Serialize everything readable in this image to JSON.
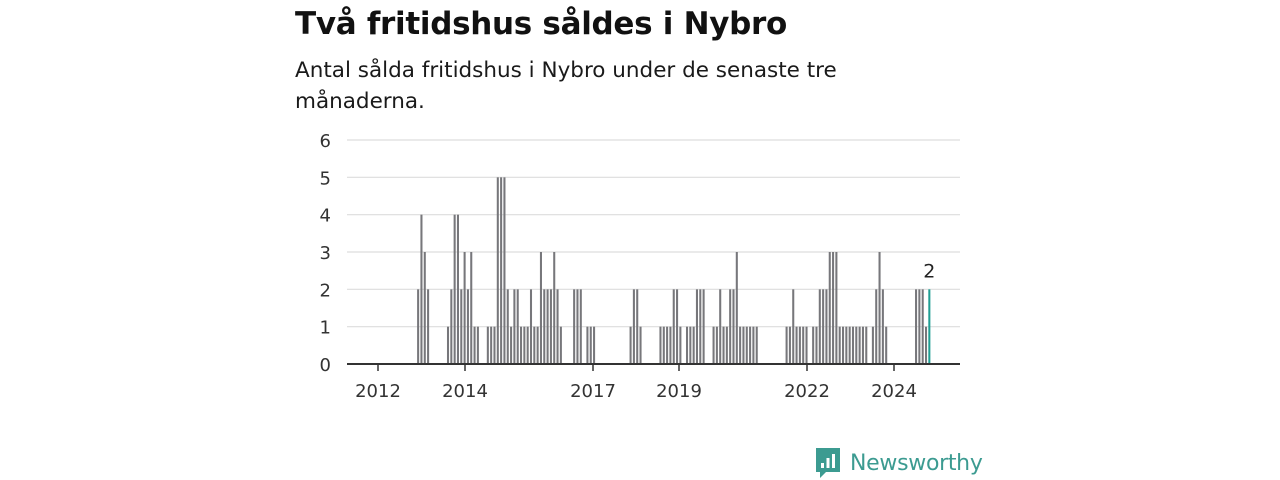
{
  "title": "Två fritidshus såldes i Nybro",
  "subtitle": "Antal sålda fritidshus i Nybro under de senaste tre månaderna.",
  "brand": "Newsworthy",
  "colors": {
    "bar": "#77777b",
    "highlight": "#1f9e93",
    "grid": "#dddddd",
    "axis": "#333333",
    "brand": "#3c9b91"
  },
  "chart_data": {
    "type": "bar",
    "ylim": [
      0,
      6
    ],
    "yticks": [
      0,
      1,
      2,
      3,
      4,
      5,
      6
    ],
    "xticks": [
      "2012",
      "2014",
      "2017",
      "2019",
      "2022",
      "2024"
    ],
    "grid": true,
    "last_value_label": "2",
    "series": [
      {
        "values": [
          0,
          0,
          0,
          0,
          0,
          0,
          0,
          0,
          0,
          0,
          0,
          0,
          0,
          0,
          2,
          4,
          3,
          2,
          0,
          0,
          0,
          0,
          0,
          1,
          2,
          4,
          4,
          2,
          3,
          2,
          3,
          1,
          1,
          0,
          0,
          1,
          1,
          1,
          5,
          5,
          5,
          2,
          1,
          2,
          2,
          1,
          1,
          1,
          2,
          1,
          1,
          3,
          2,
          2,
          2,
          3,
          2,
          1,
          0,
          0,
          0,
          2,
          2,
          2,
          0,
          1,
          1,
          1,
          0,
          0,
          0,
          0,
          0,
          0,
          0,
          0,
          0,
          0,
          1,
          2,
          2,
          1,
          0,
          0,
          0,
          0,
          0,
          1,
          1,
          1,
          1,
          2,
          2,
          1,
          0,
          1,
          1,
          1,
          2,
          2,
          2,
          0,
          0,
          1,
          1,
          2,
          1,
          1,
          2,
          2,
          3,
          1,
          1,
          1,
          1,
          1,
          1,
          0,
          0,
          0,
          0,
          0,
          0,
          0,
          0,
          1,
          1,
          2,
          1,
          1,
          1,
          1,
          0,
          1,
          1,
          2,
          2,
          2,
          3,
          3,
          3,
          1,
          1,
          1,
          1,
          1,
          1,
          1,
          1,
          1,
          0,
          1,
          2,
          3,
          2,
          1,
          0,
          0,
          0,
          0,
          0,
          0,
          0,
          0,
          2,
          2,
          2,
          1,
          2
        ]
      }
    ]
  }
}
